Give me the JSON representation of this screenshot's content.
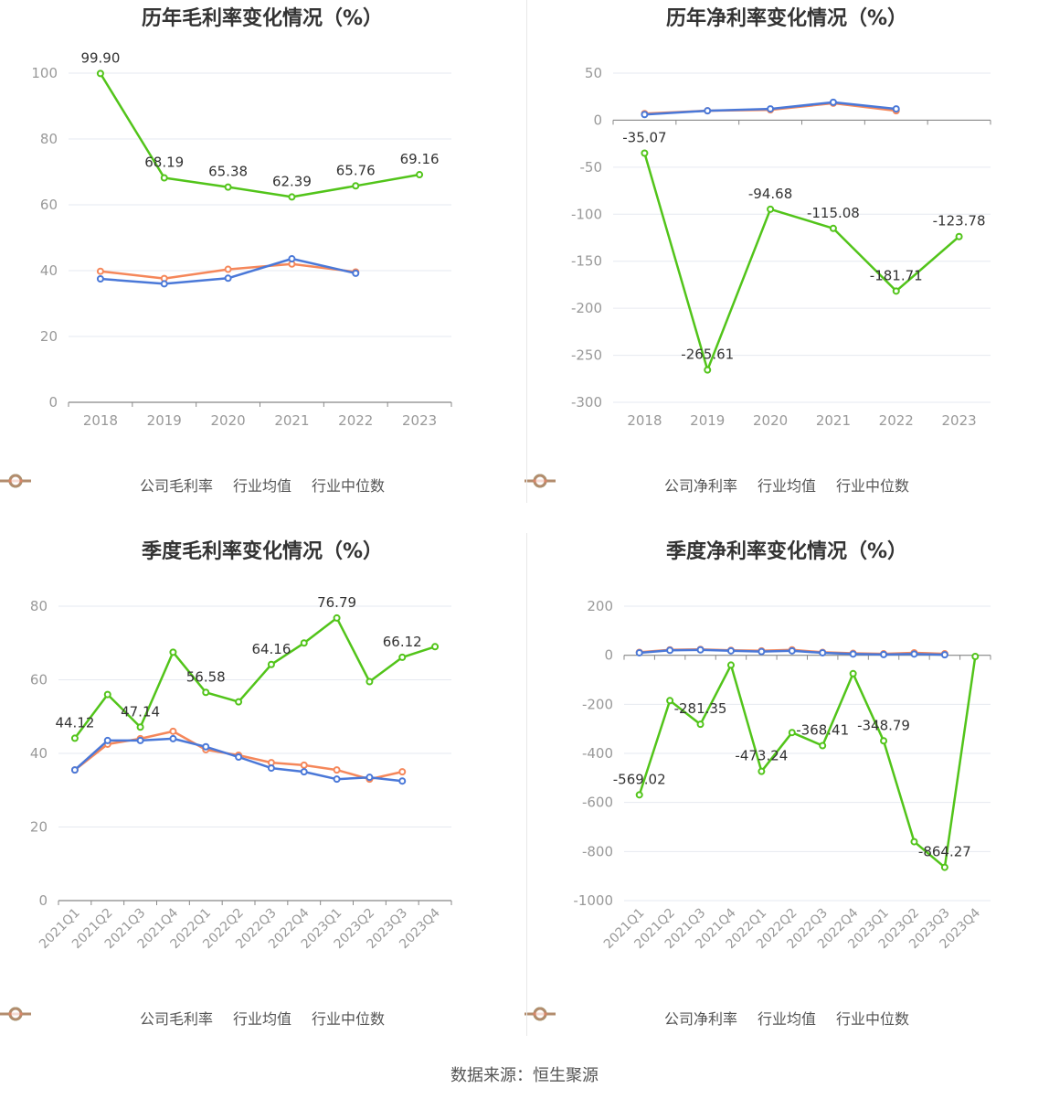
{
  "colors": {
    "company": "#52c41a",
    "avg": "#4a78d8",
    "median": "#f5875a"
  },
  "footer": {
    "source": "数据来源：恒生聚源"
  },
  "chart_data": [
    {
      "type": "line",
      "title": "历年毛利率变化情况（%）",
      "categories": [
        "2018",
        "2019",
        "2020",
        "2021",
        "2022",
        "2023"
      ],
      "ylim": [
        0,
        100
      ],
      "yticks": [
        0,
        20,
        40,
        60,
        80,
        100
      ],
      "series": [
        {
          "name": "公司毛利率",
          "key": "company",
          "values": [
            99.9,
            68.19,
            65.38,
            62.39,
            65.76,
            69.16
          ],
          "labels": [
            "99.90",
            "68.19",
            "65.38",
            "62.39",
            "65.76",
            "69.16"
          ]
        },
        {
          "name": "行业均值",
          "key": "avg",
          "values": [
            37.5,
            36.0,
            37.7,
            43.6,
            39.2,
            null
          ]
        },
        {
          "name": "行业中位数",
          "key": "median",
          "values": [
            39.8,
            37.6,
            40.4,
            42.0,
            39.6,
            null
          ]
        }
      ]
    },
    {
      "type": "line",
      "title": "历年净利率变化情况（%）",
      "categories": [
        "2018",
        "2019",
        "2020",
        "2021",
        "2022",
        "2023"
      ],
      "ylim": [
        -300,
        50
      ],
      "yticks": [
        -300,
        -250,
        -200,
        -150,
        -100,
        -50,
        0,
        50
      ],
      "series": [
        {
          "name": "公司净利率",
          "key": "company",
          "values": [
            -35.07,
            -265.61,
            -94.68,
            -115.08,
            -181.71,
            -123.78
          ],
          "labels": [
            "-35.07",
            "-265.61",
            "-94.68",
            "-115.08",
            "-181.71",
            "-123.78"
          ]
        },
        {
          "name": "行业均值",
          "key": "avg",
          "values": [
            6,
            10,
            12,
            19,
            12,
            null
          ]
        },
        {
          "name": "行业中位数",
          "key": "median",
          "values": [
            7,
            10,
            11,
            18,
            10,
            null
          ]
        }
      ]
    },
    {
      "type": "line",
      "title": "季度毛利率变化情况（%）",
      "categories": [
        "2021Q1",
        "2021Q2",
        "2021Q3",
        "2021Q4",
        "2022Q1",
        "2022Q2",
        "2022Q3",
        "2022Q4",
        "2023Q1",
        "2023Q2",
        "2023Q3",
        "2023Q4"
      ],
      "ylim": [
        0,
        80
      ],
      "yticks": [
        0,
        20,
        40,
        60,
        80
      ],
      "series": [
        {
          "name": "公司毛利率",
          "key": "company",
          "values": [
            44.12,
            56.0,
            47.14,
            67.5,
            56.58,
            54.0,
            64.16,
            70.0,
            76.79,
            59.5,
            66.12,
            69.0
          ],
          "labels": [
            "44.12",
            "",
            "47.14",
            "",
            "56.58",
            "",
            "64.16",
            "",
            "76.79",
            "",
            "66.12",
            ""
          ]
        },
        {
          "name": "行业均值",
          "key": "avg",
          "values": [
            35.5,
            43.5,
            43.5,
            44.0,
            41.8,
            39.0,
            36.0,
            35.0,
            33.0,
            33.5,
            32.5,
            null
          ]
        },
        {
          "name": "行业中位数",
          "key": "median",
          "values": [
            35.5,
            42.5,
            44.0,
            46.0,
            41.0,
            39.5,
            37.5,
            36.8,
            35.5,
            33.0,
            35.0,
            null
          ]
        }
      ]
    },
    {
      "type": "line",
      "title": "季度净利率变化情况（%）",
      "categories": [
        "2021Q1",
        "2021Q2",
        "2021Q3",
        "2021Q4",
        "2022Q1",
        "2022Q2",
        "2022Q3",
        "2022Q4",
        "2023Q1",
        "2023Q2",
        "2023Q3",
        "2023Q4"
      ],
      "ylim": [
        -1000,
        200
      ],
      "yticks": [
        -1000,
        -800,
        -600,
        -400,
        -200,
        0,
        200
      ],
      "series": [
        {
          "name": "公司净利率",
          "key": "company",
          "values": [
            -569.02,
            -185,
            -281.35,
            -40,
            -473.24,
            -315,
            -368.41,
            -75,
            -348.79,
            -760,
            -864.27,
            -5
          ],
          "labels": [
            "-569.02",
            "",
            "-281.35",
            "",
            "-473.24",
            "",
            "-368.41",
            "",
            "-348.79",
            "",
            "-864.27",
            ""
          ]
        },
        {
          "name": "行业均值",
          "key": "avg",
          "values": [
            10,
            20,
            22,
            18,
            15,
            18,
            10,
            5,
            3,
            5,
            2,
            null
          ]
        },
        {
          "name": "行业中位数",
          "key": "median",
          "values": [
            12,
            22,
            24,
            20,
            18,
            22,
            12,
            8,
            6,
            10,
            6,
            null
          ]
        }
      ]
    }
  ]
}
